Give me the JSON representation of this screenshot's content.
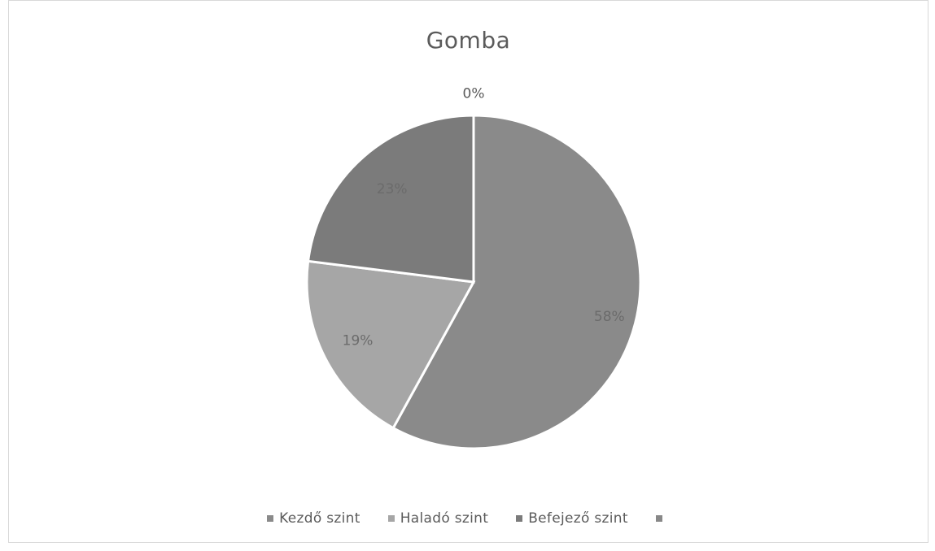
{
  "chart_data": {
    "type": "pie",
    "title": "Gomba",
    "categories": [
      "Kezdő szint",
      "Haladó szint",
      "Befejező szint",
      ""
    ],
    "values": [
      58,
      19,
      23,
      0
    ],
    "labels": [
      "58%",
      "19%",
      "23%",
      "0%"
    ],
    "colors": [
      "#8a8a8a",
      "#a6a6a6",
      "#7b7b7b",
      "#888888"
    ],
    "legend_position": "bottom"
  }
}
